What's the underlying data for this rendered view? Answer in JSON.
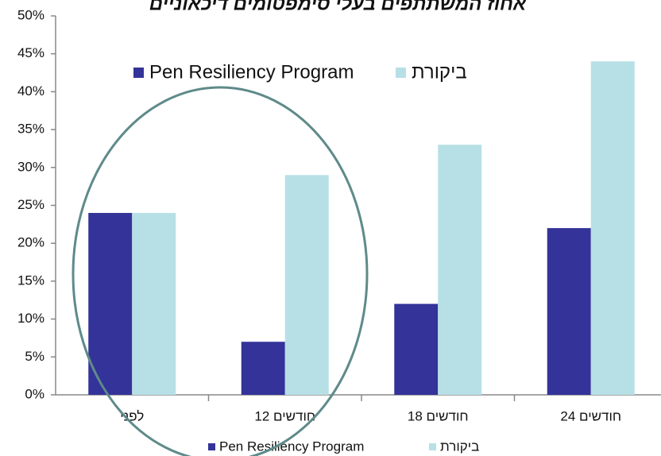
{
  "chart_data": {
    "type": "bar",
    "title": "אחוז המשתתפים בעלי סימפטומים דיכאוניים",
    "categories": [
      "לפני",
      "12 חודשים",
      "18 חודשים",
      "24 חודשים"
    ],
    "series": [
      {
        "name": "Pen Resiliency Program",
        "color": "#333399",
        "values": [
          24,
          7,
          12,
          22
        ]
      },
      {
        "name": "ביקורת",
        "color": "#b7e0e6",
        "values": [
          24,
          29,
          33,
          44
        ]
      }
    ],
    "ylim": [
      0,
      50
    ],
    "yticks": [
      {
        "value": 0,
        "label": "0%"
      },
      {
        "value": 5,
        "label": "5%"
      },
      {
        "value": 10,
        "label": "10%"
      },
      {
        "value": 15,
        "label": "15%"
      },
      {
        "value": 20,
        "label": "20%"
      },
      {
        "value": 25,
        "label": "25%"
      },
      {
        "value": 30,
        "label": "30%"
      },
      {
        "value": 35,
        "label": "35%"
      },
      {
        "value": 40,
        "label": "40%"
      },
      {
        "value": 45,
        "label": "45%"
      },
      {
        "value": 50,
        "label": "50%"
      }
    ],
    "grid": false
  }
}
